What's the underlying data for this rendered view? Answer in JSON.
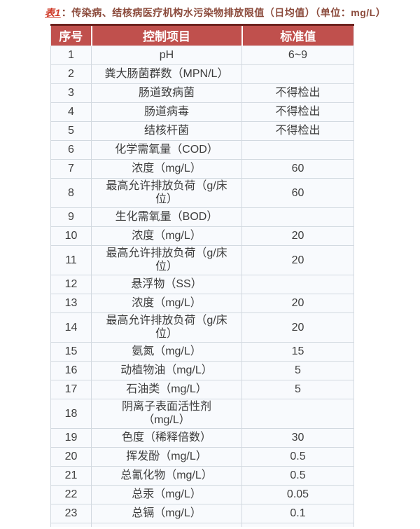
{
  "page": {
    "title_label": "表1",
    "title_text": "：传染病、结核病医疗机构水污染物排放限值（日均值）（单位：mg/L）"
  },
  "table": {
    "headers": [
      "序号",
      "控制项目",
      "标准值"
    ],
    "rows": [
      {
        "no": "1",
        "item": "pH",
        "value": "6~9"
      },
      {
        "no": "2",
        "item": "粪大肠菌群数（MPN/L）",
        "value": ""
      },
      {
        "no": "3",
        "item": "肠道致病菌",
        "value": "不得检出"
      },
      {
        "no": "4",
        "item": "肠道病毒",
        "value": "不得检出"
      },
      {
        "no": "5",
        "item": "结核杆菌",
        "value": "不得检出"
      },
      {
        "no": "6",
        "item": "化学需氧量（COD）",
        "value": ""
      },
      {
        "no": "7",
        "item": "浓度（mg/L）",
        "value": "60"
      },
      {
        "no": "8",
        "item": "最高允许排放负荷（g/床\n位）",
        "value": "60"
      },
      {
        "no": "9",
        "item": "生化需氧量（BOD）",
        "value": ""
      },
      {
        "no": "10",
        "item": "浓度（mg/L）",
        "value": "20"
      },
      {
        "no": "11",
        "item": "最高允许排放负荷（g/床\n位）",
        "value": "20"
      },
      {
        "no": "12",
        "item": "悬浮物（SS）",
        "value": ""
      },
      {
        "no": "13",
        "item": "浓度（mg/L）",
        "value": "20"
      },
      {
        "no": "14",
        "item": "最高允许排放负荷（g/床\n位）",
        "value": "20"
      },
      {
        "no": "15",
        "item": "氨氮（mg/L）",
        "value": "15"
      },
      {
        "no": "16",
        "item": "动植物油（mg/L）",
        "value": "5"
      },
      {
        "no": "17",
        "item": "石油类（mg/L）",
        "value": "5"
      },
      {
        "no": "18",
        "item": "阴离子表面活性剂\n（mg/L）",
        "value": ""
      },
      {
        "no": "19",
        "item": "色度（稀释倍数）",
        "value": "30"
      },
      {
        "no": "20",
        "item": "挥发酚（mg/L）",
        "value": "0.5"
      },
      {
        "no": "21",
        "item": "总氰化物（mg/L）",
        "value": "0.5"
      },
      {
        "no": "22",
        "item": "总汞（mg/L）",
        "value": "0.05"
      },
      {
        "no": "23",
        "item": "总镉（mg/L）",
        "value": "0.1"
      },
      {
        "no": "",
        "item": "",
        "value": "",
        "partial": true
      }
    ]
  },
  "colors": {
    "header_bg": "#c0504d",
    "header_top_border": "#6e2420",
    "header_text": "#ffffff",
    "title_label_color": "#cf3a28",
    "title_text_color": "#8b4a3b",
    "cell_bg": "#f8fafd",
    "border_color": "#d2d9e0",
    "body_text": "#3d3d3d"
  }
}
